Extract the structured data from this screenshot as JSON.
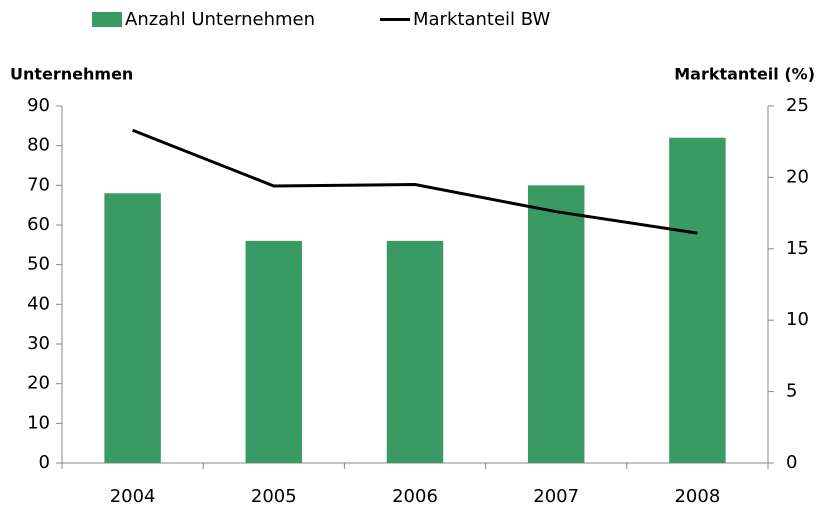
{
  "chart_data": {
    "type": "bar_line",
    "categories": [
      "2004",
      "2005",
      "2006",
      "2007",
      "2008"
    ],
    "series": [
      {
        "name": "Anzahl Unternehmen",
        "type": "bar",
        "color": "#3a9a64",
        "values": [
          68,
          56,
          56,
          70,
          82
        ]
      },
      {
        "name": "Marktanteil BW",
        "type": "line",
        "axis": "y2",
        "color": "#000000",
        "values": [
          23.3,
          19.4,
          19.5,
          17.6,
          16.1
        ]
      }
    ],
    "ylabel": "Unternehmen",
    "y2label": "Marktanteil (%)",
    "ylim": [
      0,
      90
    ],
    "yticks": [
      0,
      10,
      20,
      30,
      40,
      50,
      60,
      70,
      80,
      90
    ],
    "y2lim": [
      0,
      25
    ],
    "y2ticks": [
      0,
      5,
      10,
      15,
      20,
      25
    ],
    "legend": "top"
  }
}
